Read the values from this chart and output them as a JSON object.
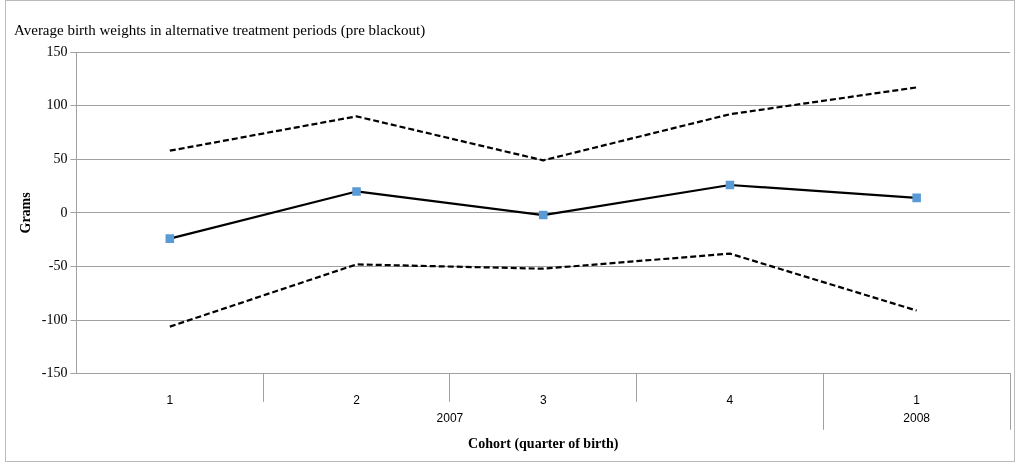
{
  "chart_data": {
    "type": "line",
    "title": "Average birth weights in alternative treatment periods (pre blackout)",
    "xlabel": "Cohort (quarter of birth)",
    "ylabel": "Grams",
    "categories": [
      "1",
      "2",
      "3",
      "4",
      "1"
    ],
    "annotations": [
      "2007",
      "2008"
    ],
    "series": [
      {
        "color": "#000000",
        "values": [
          58,
          90,
          49,
          92,
          117
        ],
        "line_style": "dashed",
        "marker": "none"
      },
      {
        "color": "#000000",
        "values": [
          -24,
          20,
          -2,
          26,
          14
        ],
        "line_style": "solid",
        "marker": "square",
        "colors": [
          "#5b9bd5",
          "#5b9bd5",
          "#5b9bd5",
          "#5b9bd5",
          "#5b9bd5"
        ]
      },
      {
        "color": "#000000",
        "values": [
          -106,
          -48,
          -52,
          -38,
          -91
        ],
        "line_style": "dashed",
        "marker": "none"
      }
    ],
    "ylim": [
      -150,
      150
    ],
    "yticks": [
      -150,
      -100,
      -50,
      0,
      50,
      100,
      150
    ],
    "grid": "y",
    "legend": false
  }
}
